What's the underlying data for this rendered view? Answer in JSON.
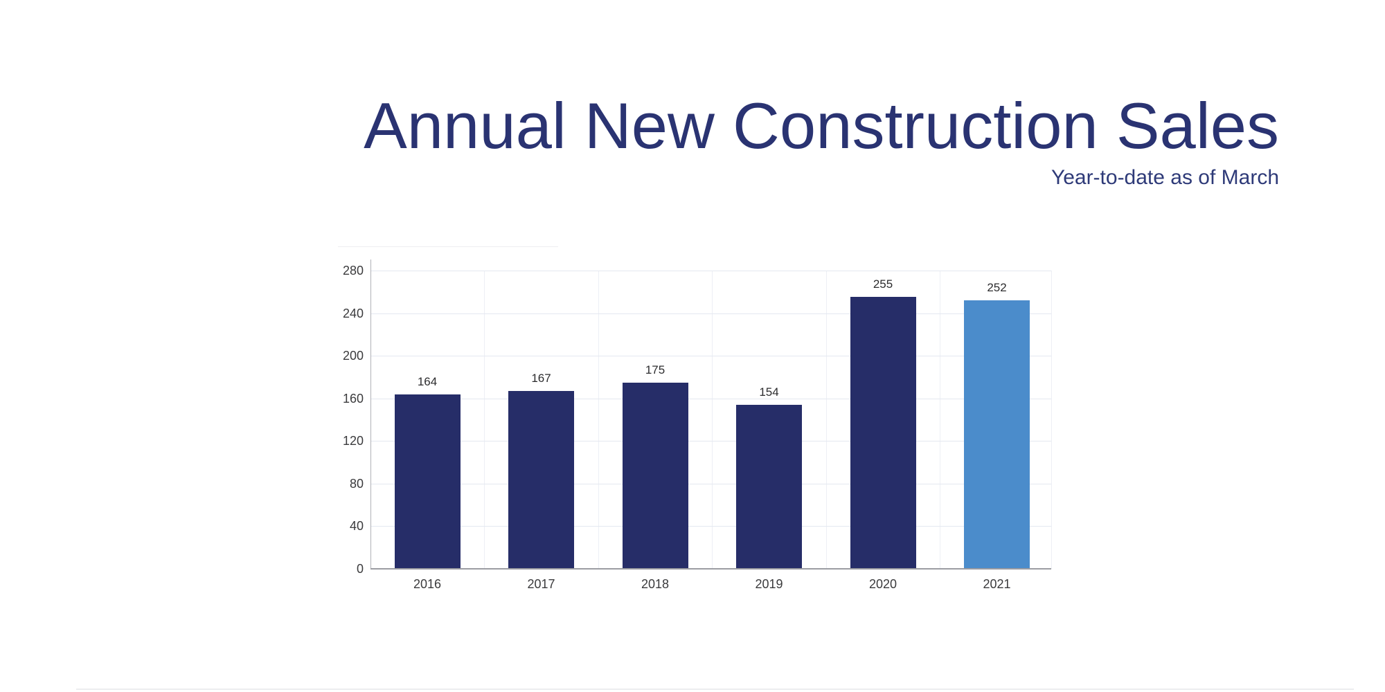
{
  "header": {
    "title": "Annual New Construction Sales",
    "subtitle": "Year-to-date as of March",
    "title_color": "#2a3372",
    "subtitle_color": "#2e3a78"
  },
  "chart_data": {
    "type": "bar",
    "title": "Annual New Construction Sales",
    "subtitle": "Year-to-date as of March",
    "categories": [
      "2016",
      "2017",
      "2018",
      "2019",
      "2020",
      "2021"
    ],
    "values": [
      164,
      167,
      175,
      154,
      255,
      252
    ],
    "data_labels": true,
    "highlight_category": "2021",
    "bar_colors": [
      "#262d68",
      "#262d68",
      "#262d68",
      "#262d68",
      "#262d68",
      "#4b8ccb"
    ],
    "xlabel": "",
    "ylabel": "",
    "ylim": [
      0,
      280
    ],
    "yticks": [
      0,
      40,
      80,
      120,
      160,
      200,
      240,
      280
    ],
    "grid": true,
    "legend_position": "none",
    "colors": {
      "bar_default": "#262d68",
      "bar_highlight": "#4b8ccb",
      "grid_horizontal": "#e4e8f0",
      "grid_vertical": "#edeff5",
      "axis_y": "#b0b1b7",
      "axis_x": "#9b9ca2",
      "tick_label": "#3a3a3c",
      "value_label": "#2b2b2d"
    }
  }
}
